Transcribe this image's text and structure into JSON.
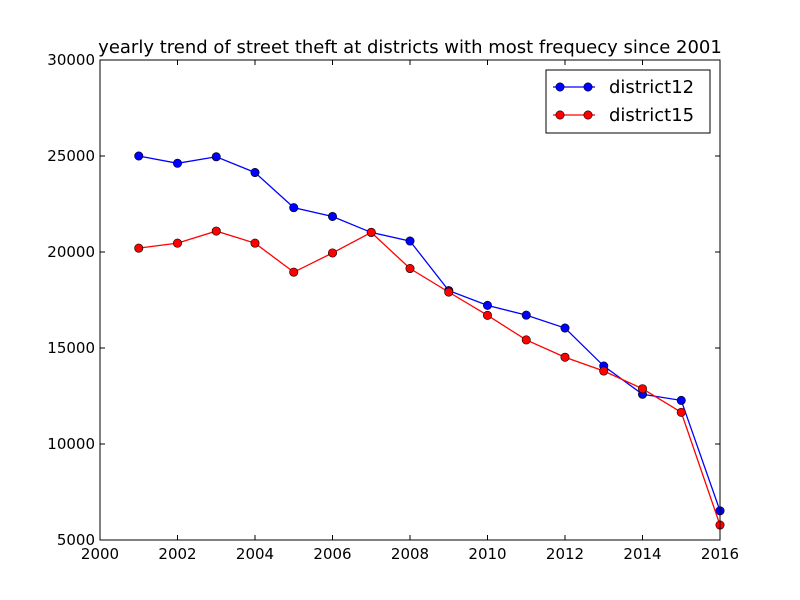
{
  "chart_data": {
    "type": "line",
    "title": "yearly trend of street theft at districts with most frequecy since 2001",
    "xlabel": "",
    "ylabel": "",
    "xlim": [
      2000,
      2016
    ],
    "ylim": [
      5000,
      30000
    ],
    "xticks": [
      2000,
      2002,
      2004,
      2006,
      2008,
      2010,
      2012,
      2014,
      2016
    ],
    "yticks": [
      5000,
      10000,
      15000,
      20000,
      25000,
      30000
    ],
    "grid": false,
    "legend_position": "top-right",
    "x": [
      2001,
      2002,
      2003,
      2004,
      2005,
      2006,
      2007,
      2008,
      2009,
      2010,
      2011,
      2012,
      2013,
      2014,
      2015,
      2016
    ],
    "series": [
      {
        "name": "district12",
        "color": "#0000ff",
        "marker": "circle",
        "values": [
          25000,
          24620,
          24960,
          24140,
          22310,
          21850,
          21020,
          20570,
          17990,
          17220,
          16710,
          16040,
          14060,
          12590,
          12270,
          6520
        ]
      },
      {
        "name": "district15",
        "color": "#ff0000",
        "marker": "circle",
        "values": [
          20200,
          20460,
          21090,
          20460,
          18950,
          19950,
          21020,
          19140,
          17910,
          16700,
          15420,
          14520,
          13800,
          12880,
          11650,
          5780
        ]
      }
    ]
  }
}
